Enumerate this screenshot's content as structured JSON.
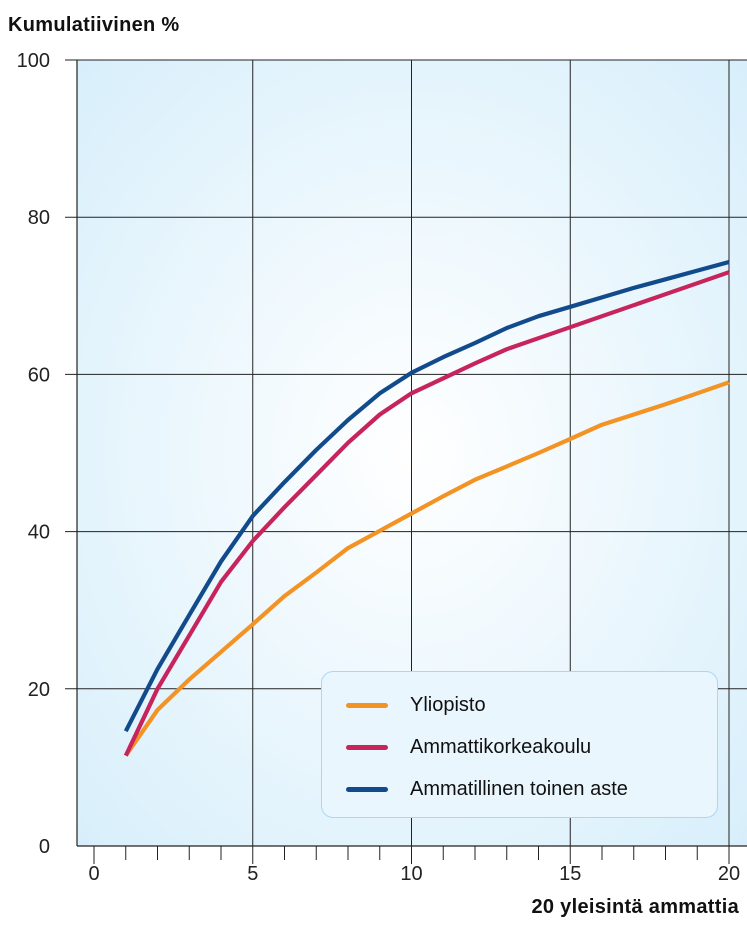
{
  "chart_data": {
    "type": "line",
    "ylabel": "Kumulatiivinen %",
    "xlabel": "20 yleisintä ammattia",
    "xlim": [
      0,
      20
    ],
    "ylim": [
      0,
      100
    ],
    "x_ticks": [
      0,
      5,
      10,
      15,
      20
    ],
    "y_ticks": [
      0,
      20,
      40,
      60,
      80,
      100
    ],
    "grid": true,
    "legend_position": "bottom-right",
    "x": [
      1,
      2,
      3,
      4,
      5,
      6,
      7,
      8,
      9,
      10,
      11,
      12,
      13,
      14,
      15,
      16,
      17,
      18,
      19,
      20
    ],
    "series": [
      {
        "name": "Yliopisto",
        "color": "#f39324",
        "values": [
          11.5,
          17.3,
          21.2,
          24.7,
          28.2,
          31.8,
          34.8,
          37.9,
          40.1,
          42.3,
          44.5,
          46.6,
          48.3,
          50.0,
          51.8,
          53.6,
          54.9,
          56.2,
          57.6,
          59.0
        ]
      },
      {
        "name": "Ammattikorkeakoulu",
        "color": "#c8245c",
        "values": [
          11.5,
          20.0,
          26.8,
          33.6,
          38.8,
          43.1,
          47.2,
          51.3,
          54.9,
          57.6,
          59.5,
          61.4,
          63.2,
          64.6,
          66.0,
          67.4,
          68.8,
          70.2,
          71.6,
          73.0
        ]
      },
      {
        "name": "Ammatillinen toinen aste",
        "color": "#124b8b",
        "values": [
          14.6,
          22.5,
          29.4,
          36.2,
          42.0,
          46.3,
          50.4,
          54.2,
          57.6,
          60.2,
          62.2,
          64.0,
          65.9,
          67.4,
          68.6,
          69.8,
          71.0,
          72.1,
          73.2,
          74.3
        ]
      }
    ]
  }
}
